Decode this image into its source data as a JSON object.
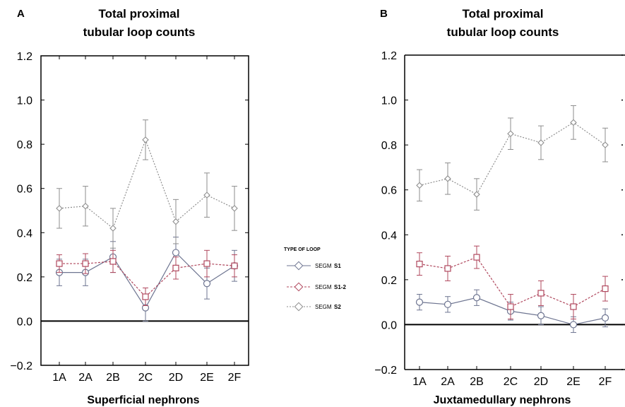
{
  "chart_data": [
    {
      "type": "line",
      "panel": "A",
      "title_lines": [
        "Total proximal",
        "tubular loop counts"
      ],
      "xlabel": "Superficial nephrons",
      "ylabel": "",
      "categories": [
        "1A",
        "2A",
        "2B",
        "2C",
        "2D",
        "2E",
        "2F"
      ],
      "ylim": [
        -0.2,
        1.2
      ],
      "yticks": [
        -0.2,
        0.0,
        0.2,
        0.4,
        0.6,
        0.8,
        1.0,
        1.2
      ],
      "ytick_labels": [
        "−0.2",
        "0.0",
        "0.2",
        "0.4",
        "0.6",
        "0.8",
        "1.0",
        "1.2"
      ],
      "series": [
        {
          "name": "S1",
          "values": [
            0.22,
            0.22,
            0.29,
            0.06,
            0.31,
            0.17,
            0.25
          ],
          "errors": [
            0.06,
            0.06,
            0.07,
            0.06,
            0.07,
            0.07,
            0.07
          ]
        },
        {
          "name": "S1-2",
          "values": [
            0.26,
            0.26,
            0.27,
            0.11,
            0.24,
            0.26,
            0.25
          ],
          "errors": [
            0.04,
            0.045,
            0.05,
            0.04,
            0.05,
            0.06,
            0.05
          ]
        },
        {
          "name": "S2",
          "values": [
            0.51,
            0.52,
            0.42,
            0.82,
            0.45,
            0.57,
            0.51
          ],
          "errors": [
            0.09,
            0.09,
            0.09,
            0.09,
            0.1,
            0.1,
            0.1
          ]
        }
      ]
    },
    {
      "type": "line",
      "panel": "B",
      "title_lines": [
        "Total proximal",
        "tubular loop counts"
      ],
      "xlabel": "Juxtamedullary nephrons",
      "ylabel": "",
      "categories": [
        "1A",
        "2A",
        "2B",
        "2C",
        "2D",
        "2E",
        "2F"
      ],
      "ylim": [
        -0.2,
        1.2
      ],
      "yticks": [
        -0.2,
        0.0,
        0.2,
        0.4,
        0.6,
        0.8,
        1.0,
        1.2
      ],
      "ytick_labels": [
        "−0.2",
        "0.0",
        "0.2",
        "0.4",
        "0.6",
        "0.8",
        "1.0",
        "1.2"
      ],
      "series": [
        {
          "name": "S1",
          "values": [
            0.1,
            0.09,
            0.12,
            0.06,
            0.04,
            0.0,
            0.03
          ],
          "errors": [
            0.035,
            0.035,
            0.035,
            0.04,
            0.04,
            0.035,
            0.04
          ]
        },
        {
          "name": "S1-2",
          "values": [
            0.27,
            0.25,
            0.3,
            0.08,
            0.14,
            0.08,
            0.16
          ],
          "errors": [
            0.05,
            0.055,
            0.05,
            0.055,
            0.055,
            0.055,
            0.055
          ]
        },
        {
          "name": "S2",
          "values": [
            0.62,
            0.65,
            0.58,
            0.85,
            0.81,
            0.9,
            0.8
          ],
          "errors": [
            0.07,
            0.07,
            0.07,
            0.07,
            0.075,
            0.075,
            0.075
          ]
        }
      ]
    }
  ],
  "legend": {
    "title": "TYPE OF LOOP",
    "items": [
      {
        "text": "SEGM",
        "code": "S1",
        "color": "#6e7591",
        "dash": ""
      },
      {
        "text": "SEGM",
        "code": "S1-2",
        "color": "#b0485e",
        "dash": "3,2"
      },
      {
        "text": "SEGM",
        "code": "S2",
        "color": "#8e8e8e",
        "dash": "2,2"
      }
    ]
  },
  "colors": {
    "S1": "#6e7591",
    "S1-2": "#b0485e",
    "S2": "#8e8e8e"
  }
}
